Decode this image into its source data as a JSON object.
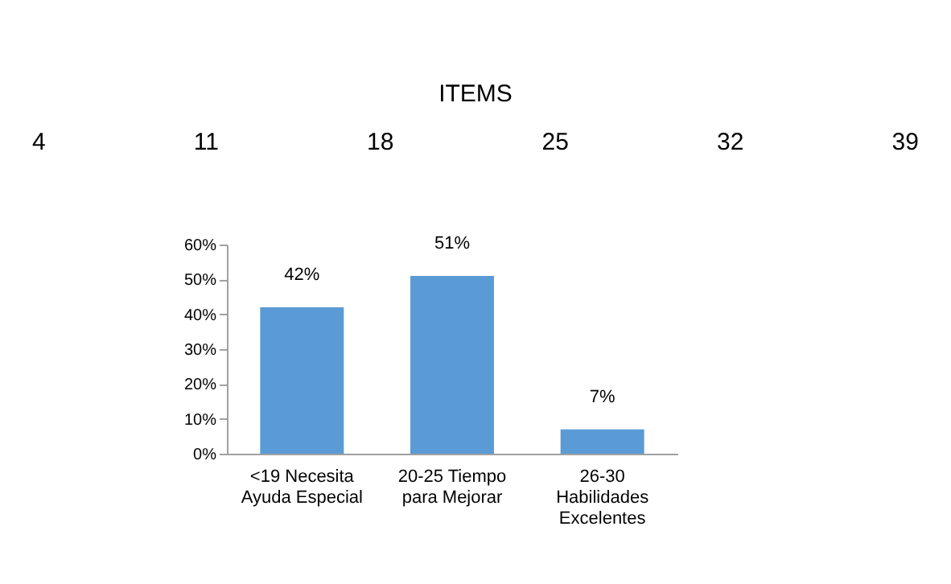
{
  "chart_data": {
    "type": "bar",
    "title": "ITEMS",
    "annotations": [
      "4",
      "11",
      "18",
      "25",
      "32",
      "39"
    ],
    "categories": [
      "<19 Necesita Ayuda Especial",
      "20-25 Tiempo para Mejorar",
      "26-30 Habilidades Excelentes"
    ],
    "values": [
      42,
      51,
      7
    ],
    "color": "#5b9bd5",
    "value_labels": [
      "42%",
      "51%",
      "7%"
    ],
    "ylim": [
      0,
      60
    ],
    "yticks": [
      {
        "value": 0,
        "label": "0%"
      },
      {
        "value": 10,
        "label": "10%"
      },
      {
        "value": 20,
        "label": "20%"
      },
      {
        "value": 30,
        "label": "30%"
      },
      {
        "value": 40,
        "label": "40%"
      },
      {
        "value": 50,
        "label": "50%"
      },
      {
        "value": 60,
        "label": "60%"
      }
    ]
  }
}
